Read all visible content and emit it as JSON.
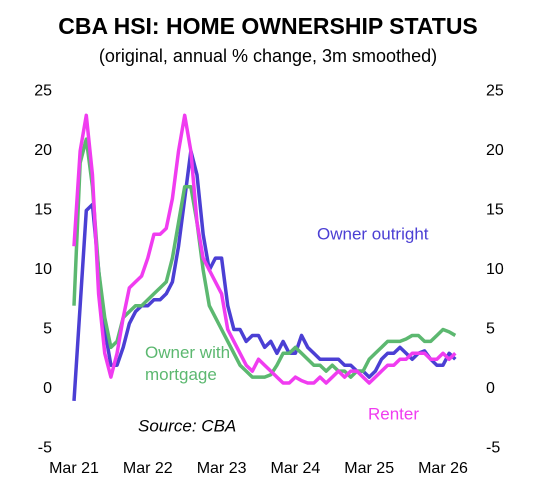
{
  "chart_data": {
    "type": "line",
    "title": "CBA HSI: HOME OWNERSHIP STATUS",
    "subtitle": "(original, annual % change, 3m smoothed)",
    "source": "Source: CBA",
    "categories": [
      "Mar 21",
      null,
      null,
      null,
      null,
      null,
      null,
      null,
      null,
      null,
      null,
      null,
      "Mar 22",
      null,
      null,
      null,
      null,
      null,
      null,
      null,
      null,
      null,
      null,
      null,
      "Mar 23",
      null,
      null,
      null,
      null,
      null,
      null,
      null,
      null,
      null,
      null,
      null,
      "Mar 24",
      null,
      null,
      null,
      null,
      null,
      null,
      null,
      null,
      null,
      null,
      null,
      "Mar 25",
      null,
      null,
      null,
      null,
      null,
      null,
      null,
      null,
      null,
      null,
      null,
      "Mar 26",
      null,
      null
    ],
    "series": [
      {
        "name": "Owner outright",
        "color": "#4b3fd4",
        "values": [
          -1,
          7,
          15,
          15.5,
          10,
          5,
          2,
          2,
          3.5,
          5.5,
          6.5,
          7,
          7,
          7.5,
          7.5,
          8,
          9,
          12,
          16,
          20,
          18,
          13,
          10,
          11,
          11,
          7,
          5,
          5,
          4,
          4.5,
          4.5,
          3.5,
          4,
          3,
          4,
          3,
          3,
          4.5,
          3.5,
          3,
          2.5,
          2.5,
          2.5,
          2.5,
          2,
          2,
          1.5,
          1.5,
          1,
          1.5,
          2.5,
          3,
          3,
          3.5,
          3,
          2.5,
          3,
          3.2,
          2.5,
          2,
          2,
          3,
          2.5
        ]
      },
      {
        "name": "Owner with mortgage",
        "color": "#5cb870",
        "values": [
          7,
          19,
          21,
          17,
          10,
          6,
          3.5,
          4,
          6,
          6.5,
          7,
          7,
          7.5,
          8,
          8.5,
          9,
          11,
          14,
          17,
          17,
          14,
          10,
          7,
          6,
          5,
          4,
          3,
          2,
          1.5,
          1,
          1,
          1,
          1.2,
          2,
          3,
          3,
          3.5,
          3,
          2.5,
          2,
          2,
          1.5,
          2,
          1.5,
          1.5,
          1,
          1.5,
          1.5,
          2.5,
          3,
          3.5,
          4,
          4,
          4,
          4.2,
          4.5,
          4.5,
          4,
          4,
          4.5,
          5,
          4.8,
          4.5
        ]
      },
      {
        "name": "Renter",
        "color": "#f03cf0",
        "values": [
          12,
          20,
          23,
          18,
          8,
          3,
          1,
          3,
          6,
          8.5,
          9,
          9.5,
          11,
          13,
          13,
          13.5,
          16,
          20,
          23,
          20,
          14,
          11,
          10,
          9,
          8,
          5,
          4,
          3,
          2,
          1.5,
          2.5,
          2,
          1.5,
          1,
          0.5,
          0.5,
          1,
          0.7,
          0.5,
          0.5,
          1,
          0.5,
          1,
          1.5,
          1,
          1.5,
          1.5,
          1,
          0.5,
          1,
          1.5,
          2,
          2,
          2.5,
          2.5,
          3,
          3,
          3,
          2.5,
          2.5,
          3,
          2.5,
          3
        ]
      }
    ],
    "ylim": [
      -5,
      25
    ],
    "yticks": [
      -5,
      0,
      5,
      10,
      15,
      20,
      25
    ],
    "y2lim": [
      -5,
      25
    ],
    "y2ticks": [
      -5,
      0,
      5,
      10,
      15,
      20,
      25
    ],
    "grid": false
  }
}
